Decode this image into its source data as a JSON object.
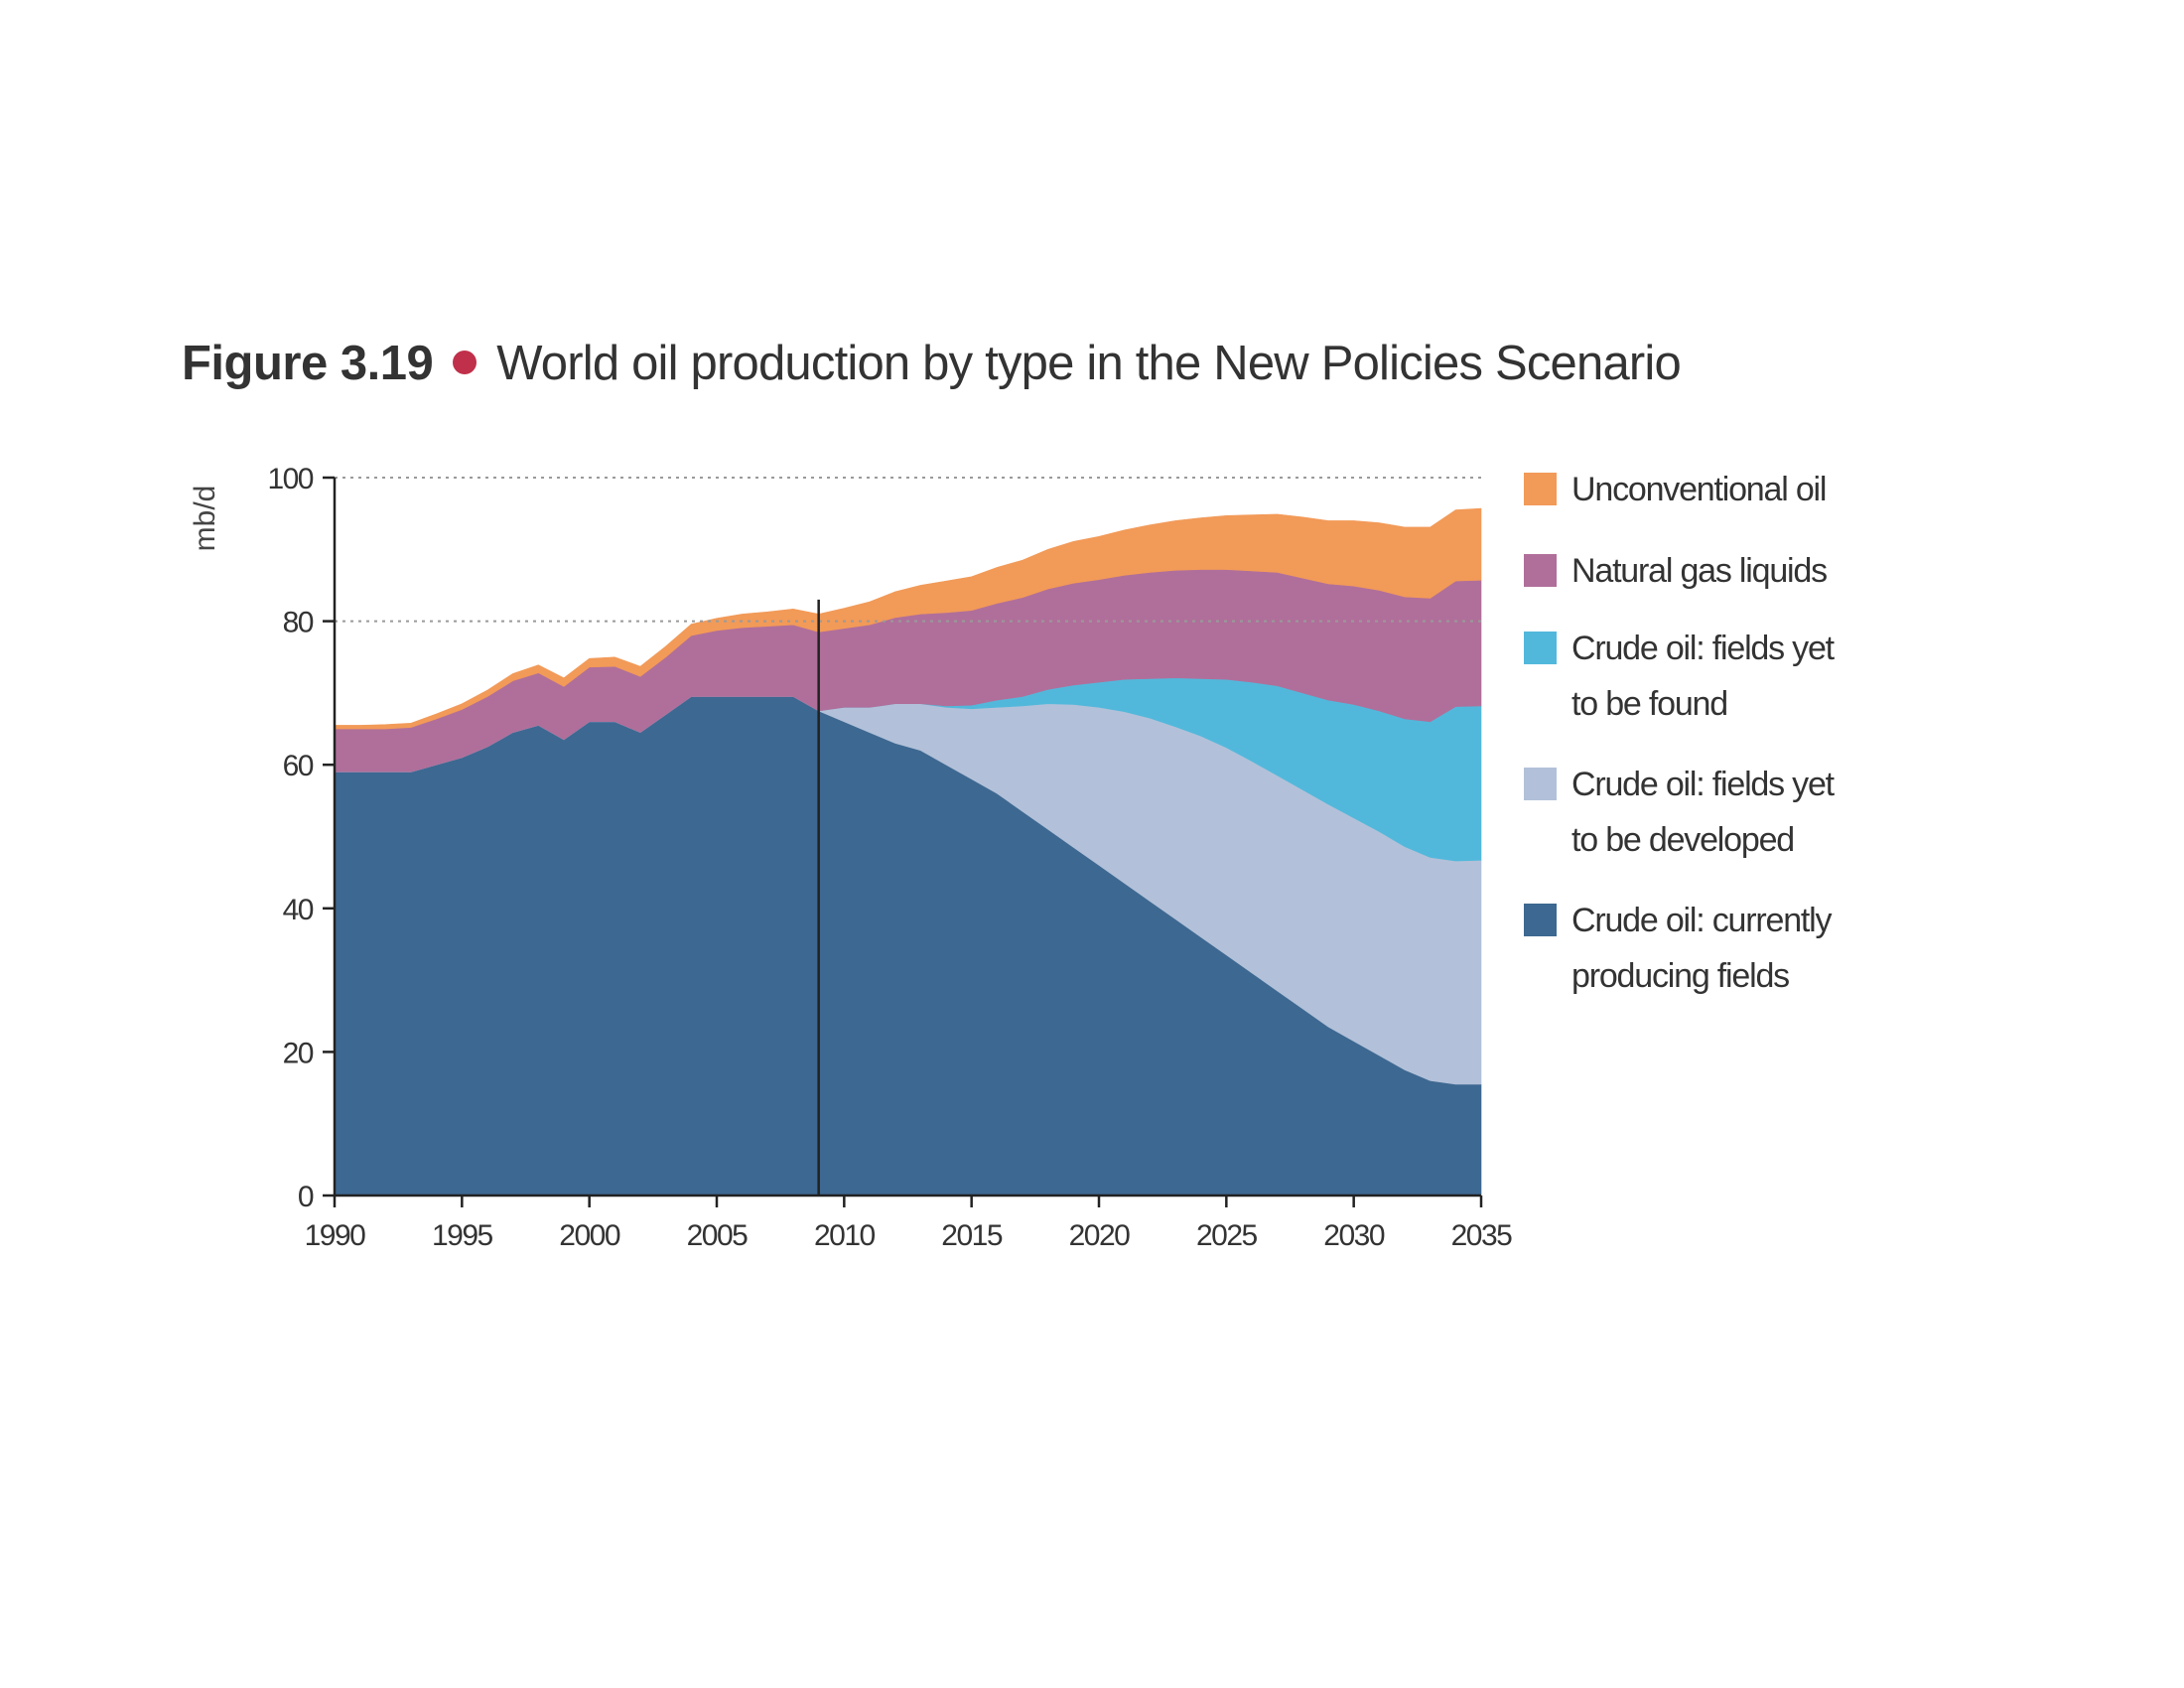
{
  "figure": {
    "number": "Figure 3.19",
    "title": "World oil production by type in the New Policies Scenario",
    "bullet_color": "#c0304a"
  },
  "chart_data": {
    "type": "area",
    "stacked": true,
    "title": "World oil production by type in the New Policies Scenario",
    "ylabel": "mb/d",
    "xlabel": "",
    "xlim": [
      1990,
      2035
    ],
    "ylim": [
      0,
      100
    ],
    "x_ticks": [
      1990,
      1995,
      2000,
      2005,
      2010,
      2015,
      2020,
      2025,
      2030,
      2035
    ],
    "y_ticks": [
      0,
      20,
      40,
      60,
      80,
      100
    ],
    "gridlines_y": [
      80,
      100
    ],
    "divider_year": 2009,
    "x": [
      1990,
      1991,
      1992,
      1993,
      1994,
      1995,
      1996,
      1997,
      1998,
      1999,
      2000,
      2001,
      2002,
      2003,
      2004,
      2005,
      2006,
      2007,
      2008,
      2009,
      2010,
      2011,
      2012,
      2013,
      2014,
      2015,
      2016,
      2017,
      2018,
      2019,
      2020,
      2021,
      2022,
      2023,
      2024,
      2025,
      2026,
      2027,
      2028,
      2029,
      2030,
      2031,
      2032,
      2033,
      2034,
      2035
    ],
    "series": [
      {
        "name": "Crude oil: currently producing fields",
        "color": "#3d6891",
        "values": [
          59,
          59,
          59,
          59,
          60,
          61,
          62.5,
          64.5,
          65.5,
          63.5,
          66,
          66,
          64.5,
          67,
          69.5,
          69.5,
          69.5,
          69.5,
          69.5,
          67.5,
          66,
          64.5,
          63,
          62,
          60,
          58,
          56,
          53.5,
          51,
          48.5,
          46,
          43.5,
          41,
          38.5,
          36,
          33.5,
          31,
          28.5,
          26,
          23.5,
          21.5,
          19.5,
          17.5,
          16,
          15.5,
          15.5
        ]
      },
      {
        "name": "Crude oil: fields yet to be developed",
        "color": "#b2c1d9",
        "values": [
          0,
          0,
          0,
          0,
          0,
          0,
          0,
          0,
          0,
          0,
          0,
          0,
          0,
          0,
          0,
          0,
          0,
          0,
          0,
          0,
          2,
          3.5,
          5.5,
          6.5,
          8,
          9.8,
          12,
          14.7,
          17.5,
          19.9,
          22,
          23.9,
          25.5,
          26.8,
          28,
          28.9,
          29.5,
          30,
          30.5,
          31,
          31.1,
          31.2,
          31.1,
          31.1,
          31.1,
          31.2
        ]
      },
      {
        "name": "Crude oil: fields yet to be found",
        "color": "#52b8db",
        "values": [
          0,
          0,
          0,
          0,
          0,
          0,
          0,
          0,
          0,
          0,
          0,
          0,
          0,
          0,
          0,
          0,
          0,
          0,
          0,
          0,
          0,
          0,
          0,
          0,
          0.2,
          0.5,
          1,
          1.3,
          2,
          2.7,
          3.5,
          4.5,
          5.5,
          6.8,
          8,
          9.5,
          11,
          12.5,
          13.5,
          14.5,
          15.8,
          16.8,
          17.8,
          18.9,
          21.5,
          21.5
        ]
      },
      {
        "name": "Natural gas liquids",
        "color": "#b06f9a",
        "values": [
          6,
          6,
          6,
          6.2,
          6.4,
          6.7,
          7,
          7.2,
          7.3,
          7.4,
          7.6,
          7.7,
          7.8,
          8,
          8.5,
          9.2,
          9.6,
          9.8,
          10,
          11,
          11,
          11.5,
          12,
          12.5,
          13,
          13.2,
          13.5,
          13.8,
          14,
          14.2,
          14.3,
          14.5,
          14.8,
          15,
          15.2,
          15.3,
          15.5,
          15.8,
          16,
          16.2,
          16.5,
          16.8,
          17,
          17.2,
          17.5,
          17.5
        ]
      },
      {
        "name": "Unconventional oil",
        "color": "#f29a58",
        "values": [
          0.5,
          0.5,
          0.6,
          0.6,
          0.7,
          0.8,
          0.9,
          1,
          1.1,
          1.2,
          1.2,
          1.3,
          1.4,
          1.5,
          1.6,
          1.7,
          1.9,
          2,
          2.2,
          2.5,
          2.8,
          3.2,
          3.6,
          4,
          4.4,
          4.7,
          5,
          5.2,
          5.5,
          5.8,
          6,
          6.3,
          6.6,
          6.9,
          7.2,
          7.5,
          7.8,
          8.1,
          8.5,
          8.8,
          9.1,
          9.4,
          9.7,
          9.9,
          9.9,
          10
        ]
      }
    ],
    "legend": [
      {
        "lines": [
          "Unconventional oil"
        ],
        "color": "#f29a58"
      },
      {
        "lines": [
          "Natural gas liquids"
        ],
        "color": "#b06f9a"
      },
      {
        "lines": [
          "Crude oil: fields yet",
          "to be found"
        ],
        "color": "#52b8db"
      },
      {
        "lines": [
          "Crude oil: fields yet",
          "to be developed"
        ],
        "color": "#b2c1d9"
      },
      {
        "lines": [
          "Crude oil: currently",
          "producing fields"
        ],
        "color": "#3d6891"
      }
    ]
  }
}
